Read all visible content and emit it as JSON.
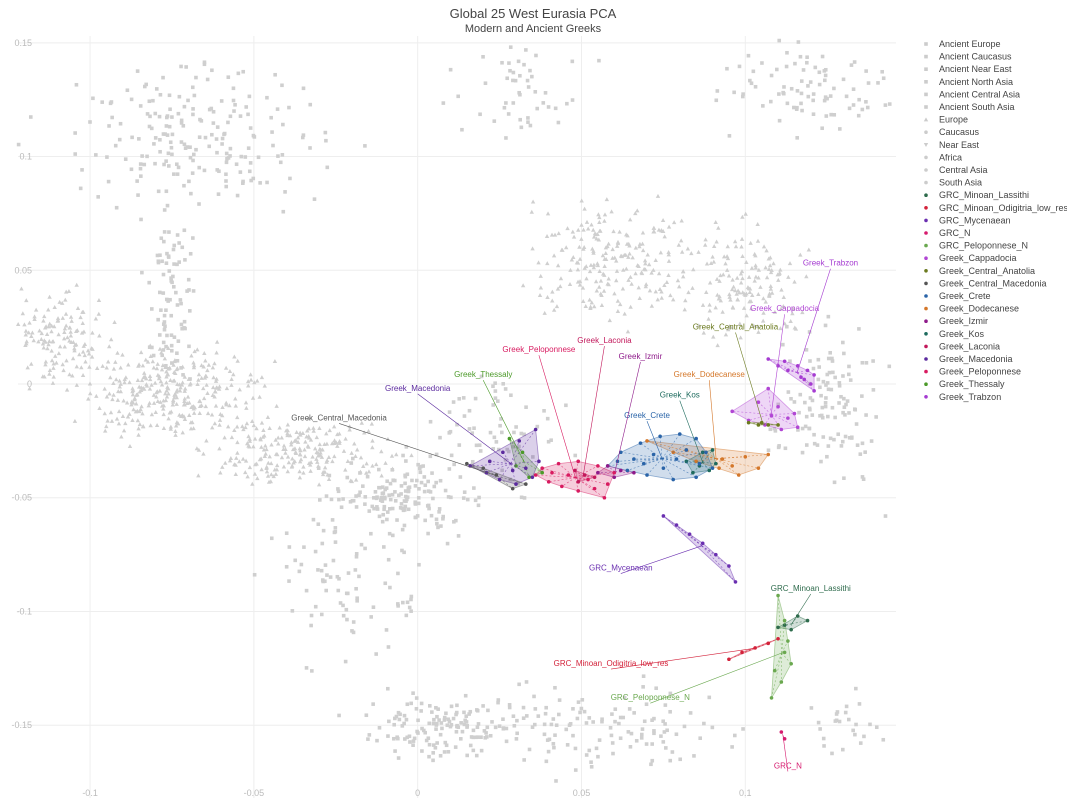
{
  "chart_data": {
    "type": "scatter",
    "title": "Global 25 West Eurasia PCA",
    "subtitle": "Modern and Ancient Greeks",
    "xlabel": "",
    "ylabel": "",
    "xlim": [
      -0.122,
      0.146
    ],
    "ylim": [
      -0.182,
      0.153
    ],
    "x_ticks": [
      -0.1,
      -0.05,
      0,
      0.05,
      0.1
    ],
    "x_tick_labels": [
      "-0.1",
      "-0.05",
      "0",
      "0.05",
      "0.1"
    ],
    "y_ticks": [
      0.15,
      0.1,
      0.05,
      0,
      -0.05,
      -0.1,
      -0.15
    ],
    "y_tick_labels": [
      "0.15",
      "0.1",
      "0.05",
      "0",
      "-0.05",
      "-0.1",
      "-0.15"
    ],
    "grid": true,
    "legend_position": "right",
    "background_points": {
      "color": "#cfcfcf",
      "note_regions": [
        {
          "name": "Europe",
          "cx": -0.065,
          "cy": -0.005,
          "n": 700
        },
        {
          "name": "Near East",
          "cx": 0.06,
          "cy": 0.05,
          "n": 260
        },
        {
          "name": "Caucasus",
          "cx": 0.1,
          "cy": 0.05,
          "n": 160
        },
        {
          "name": "Central Asia",
          "cx": -0.07,
          "cy": 0.11,
          "n": 240
        },
        {
          "name": "South Asia",
          "cx": 0.01,
          "cy": -0.15,
          "n": 220
        }
      ]
    },
    "legend": [
      {
        "name": "Ancient Europe",
        "color": "#cccccc",
        "marker": "square"
      },
      {
        "name": "Ancient Caucasus",
        "color": "#cccccc",
        "marker": "square"
      },
      {
        "name": "Ancient Near East",
        "color": "#cccccc",
        "marker": "square"
      },
      {
        "name": "Ancient North Asia",
        "color": "#cccccc",
        "marker": "square"
      },
      {
        "name": "Ancient Central Asia",
        "color": "#cccccc",
        "marker": "square"
      },
      {
        "name": "Ancient South Asia",
        "color": "#cccccc",
        "marker": "square"
      },
      {
        "name": "Europe",
        "color": "#cccccc",
        "marker": "triangle"
      },
      {
        "name": "Caucasus",
        "color": "#cccccc",
        "marker": "circle"
      },
      {
        "name": "Near East",
        "color": "#cccccc",
        "marker": "triangle-down"
      },
      {
        "name": "Africa",
        "color": "#cccccc",
        "marker": "circle"
      },
      {
        "name": "Central Asia",
        "color": "#cccccc",
        "marker": "circle"
      },
      {
        "name": "South Asia",
        "color": "#cccccc",
        "marker": "circle"
      },
      {
        "name": "GRC_Minoan_Lassithi",
        "color": "#2e6b4c",
        "marker": "circle"
      },
      {
        "name": "GRC_Minoan_Odigitria_low_res",
        "color": "#d3223a",
        "marker": "circle"
      },
      {
        "name": "GRC_Mycenaean",
        "color": "#6a2fb0",
        "marker": "circle"
      },
      {
        "name": "GRC_N",
        "color": "#d61b6e",
        "marker": "circle"
      },
      {
        "name": "GRC_Peloponnese_N",
        "color": "#6aa84f",
        "marker": "circle"
      },
      {
        "name": "Greek_Cappadocia",
        "color": "#b146d4",
        "marker": "circle"
      },
      {
        "name": "Greek_Central_Anatolia",
        "color": "#6b7a1f",
        "marker": "circle"
      },
      {
        "name": "Greek_Central_Macedonia",
        "color": "#555555",
        "marker": "circle"
      },
      {
        "name": "Greek_Crete",
        "color": "#2a64a8",
        "marker": "circle"
      },
      {
        "name": "Greek_Dodecanese",
        "color": "#d4772a",
        "marker": "circle"
      },
      {
        "name": "Greek_Izmir",
        "color": "#8e1a8a",
        "marker": "circle"
      },
      {
        "name": "Greek_Kos",
        "color": "#1e6b5e",
        "marker": "circle"
      },
      {
        "name": "Greek_Laconia",
        "color": "#c2185b",
        "marker": "circle"
      },
      {
        "name": "Greek_Macedonia",
        "color": "#5b2a9e",
        "marker": "circle"
      },
      {
        "name": "Greek_Peloponnese",
        "color": "#d81b60",
        "marker": "circle"
      },
      {
        "name": "Greek_Thessaly",
        "color": "#4c9a2a",
        "marker": "circle"
      },
      {
        "name": "Greek_Trabzon",
        "color": "#a53bd1",
        "marker": "circle"
      }
    ],
    "series": [
      {
        "name": "Greek_Trabzon",
        "color": "#a53bd1",
        "points": [
          [
            0.107,
            0.011
          ],
          [
            0.112,
            0.01
          ],
          [
            0.116,
            0.008
          ],
          [
            0.119,
            0.006
          ],
          [
            0.121,
            0.004
          ],
          [
            0.12,
            0.0
          ],
          [
            0.117,
            0.003
          ],
          [
            0.113,
            0.006
          ],
          [
            0.11,
            0.008
          ],
          [
            0.121,
            -0.003
          ],
          [
            0.118,
            0.002
          ]
        ],
        "label": "Greek_Trabzon",
        "label_pos": [
          0.126,
          0.052
        ]
      },
      {
        "name": "Greek_Cappadocia",
        "color": "#b146d4",
        "points": [
          [
            0.096,
            -0.012
          ],
          [
            0.101,
            -0.016
          ],
          [
            0.106,
            -0.018
          ],
          [
            0.111,
            -0.02
          ],
          [
            0.116,
            -0.019
          ],
          [
            0.115,
            -0.013
          ],
          [
            0.11,
            -0.01
          ],
          [
            0.107,
            -0.002
          ],
          [
            0.104,
            -0.008
          ],
          [
            0.108,
            -0.014
          ],
          [
            0.113,
            -0.015
          ]
        ],
        "label": "Greek_Cappadocia",
        "label_pos": [
          0.112,
          0.032
        ]
      },
      {
        "name": "Greek_Central_Anatolia",
        "color": "#6b7a1f",
        "points": [
          [
            0.101,
            -0.017
          ],
          [
            0.104,
            -0.018
          ],
          [
            0.107,
            -0.018
          ],
          [
            0.11,
            -0.018
          ],
          [
            0.105,
            -0.017
          ]
        ],
        "label": "Greek_Central_Anatolia",
        "label_pos": [
          0.097,
          0.024
        ]
      },
      {
        "name": "Greek_Dodecanese",
        "color": "#d4772a",
        "points": [
          [
            0.07,
            -0.025
          ],
          [
            0.078,
            -0.03
          ],
          [
            0.085,
            -0.034
          ],
          [
            0.092,
            -0.037
          ],
          [
            0.098,
            -0.04
          ],
          [
            0.104,
            -0.037
          ],
          [
            0.107,
            -0.031
          ],
          [
            0.1,
            -0.032
          ],
          [
            0.093,
            -0.033
          ],
          [
            0.088,
            -0.03
          ],
          [
            0.082,
            -0.029
          ],
          [
            0.096,
            -0.036
          ]
        ],
        "label": "Greek_Dodecanese",
        "label_pos": [
          0.089,
          0.003
        ]
      },
      {
        "name": "Greek_Kos",
        "color": "#1e6b5e",
        "points": [
          [
            0.082,
            -0.034
          ],
          [
            0.086,
            -0.036
          ],
          [
            0.089,
            -0.038
          ],
          [
            0.087,
            -0.03
          ],
          [
            0.09,
            -0.029
          ],
          [
            0.084,
            -0.039
          ],
          [
            0.091,
            -0.035
          ]
        ],
        "label": "Greek_Kos",
        "label_pos": [
          0.08,
          -0.006
        ]
      },
      {
        "name": "Greek_Crete",
        "color": "#2a64a8",
        "points": [
          [
            0.062,
            -0.03
          ],
          [
            0.068,
            -0.026
          ],
          [
            0.074,
            -0.023
          ],
          [
            0.08,
            -0.022
          ],
          [
            0.085,
            -0.024
          ],
          [
            0.088,
            -0.03
          ],
          [
            0.09,
            -0.037
          ],
          [
            0.085,
            -0.041
          ],
          [
            0.078,
            -0.042
          ],
          [
            0.07,
            -0.04
          ],
          [
            0.064,
            -0.038
          ],
          [
            0.058,
            -0.036
          ],
          [
            0.066,
            -0.033
          ],
          [
            0.072,
            -0.031
          ],
          [
            0.079,
            -0.033
          ],
          [
            0.075,
            -0.037
          ],
          [
            0.082,
            -0.029
          ],
          [
            0.069,
            -0.035
          ],
          [
            0.061,
            -0.034
          ],
          [
            0.086,
            -0.035
          ]
        ],
        "label": "Greek_Crete",
        "label_pos": [
          0.07,
          -0.015
        ]
      },
      {
        "name": "Greek_Izmir",
        "color": "#8e1a8a",
        "points": [
          [
            0.058,
            -0.036
          ],
          [
            0.062,
            -0.038
          ],
          [
            0.066,
            -0.039
          ],
          [
            0.055,
            -0.039
          ],
          [
            0.06,
            -0.041
          ]
        ],
        "label": "Greek_Izmir",
        "label_pos": [
          0.068,
          0.011
        ]
      },
      {
        "name": "Greek_Laconia",
        "color": "#c2185b",
        "points": [
          [
            0.048,
            -0.038
          ],
          [
            0.051,
            -0.04
          ],
          [
            0.054,
            -0.041
          ],
          [
            0.049,
            -0.043
          ]
        ],
        "label": "Greek_Laconia",
        "label_pos": [
          0.057,
          0.018
        ]
      },
      {
        "name": "Greek_Peloponnese",
        "color": "#d81b60",
        "points": [
          [
            0.036,
            -0.04
          ],
          [
            0.04,
            -0.043
          ],
          [
            0.044,
            -0.045
          ],
          [
            0.049,
            -0.047
          ],
          [
            0.054,
            -0.046
          ],
          [
            0.058,
            -0.044
          ],
          [
            0.06,
            -0.039
          ],
          [
            0.055,
            -0.036
          ],
          [
            0.049,
            -0.034
          ],
          [
            0.043,
            -0.035
          ],
          [
            0.038,
            -0.037
          ],
          [
            0.046,
            -0.04
          ],
          [
            0.052,
            -0.042
          ],
          [
            0.057,
            -0.05
          ],
          [
            0.041,
            -0.039
          ]
        ],
        "label": "Greek_Peloponnese",
        "label_pos": [
          0.037,
          0.014
        ]
      },
      {
        "name": "Greek_Thessaly",
        "color": "#4c9a2a",
        "points": [
          [
            0.028,
            -0.024
          ],
          [
            0.032,
            -0.03
          ],
          [
            0.03,
            -0.036
          ],
          [
            0.034,
            -0.041
          ],
          [
            0.038,
            -0.039
          ]
        ],
        "label": "Greek_Thessaly",
        "label_pos": [
          0.02,
          0.003
        ]
      },
      {
        "name": "Greek_Macedonia",
        "color": "#5b2a9e",
        "points": [
          [
            0.016,
            -0.036
          ],
          [
            0.021,
            -0.039
          ],
          [
            0.025,
            -0.042
          ],
          [
            0.03,
            -0.044
          ],
          [
            0.035,
            -0.041
          ],
          [
            0.037,
            -0.034
          ],
          [
            0.036,
            -0.02
          ],
          [
            0.031,
            -0.025
          ],
          [
            0.026,
            -0.03
          ],
          [
            0.022,
            -0.034
          ],
          [
            0.029,
            -0.038
          ],
          [
            0.033,
            -0.037
          ]
        ],
        "label": "Greek_Macedonia",
        "label_pos": [
          0.0,
          -0.003
        ]
      },
      {
        "name": "Greek_Central_Macedonia",
        "color": "#555555",
        "points": [
          [
            0.015,
            -0.035
          ],
          [
            0.02,
            -0.037
          ],
          [
            0.024,
            -0.04
          ],
          [
            0.029,
            -0.046
          ],
          [
            0.033,
            -0.044
          ]
        ],
        "label": "Greek_Central_Macedonia",
        "label_pos": [
          -0.024,
          -0.016
        ]
      },
      {
        "name": "GRC_Mycenaean",
        "color": "#6a2fb0",
        "points": [
          [
            0.075,
            -0.058
          ],
          [
            0.079,
            -0.062
          ],
          [
            0.083,
            -0.066
          ],
          [
            0.087,
            -0.07
          ],
          [
            0.091,
            -0.075
          ],
          [
            0.095,
            -0.08
          ],
          [
            0.097,
            -0.087
          ]
        ],
        "label": "GRC_Mycenaean",
        "label_pos": [
          0.062,
          -0.082
        ]
      },
      {
        "name": "GRC_Minoan_Lassithi",
        "color": "#2e6b4c",
        "points": [
          [
            0.11,
            -0.107
          ],
          [
            0.114,
            -0.108
          ],
          [
            0.119,
            -0.104
          ],
          [
            0.116,
            -0.102
          ],
          [
            0.112,
            -0.106
          ]
        ],
        "label": "GRC_Minoan_Lassithi",
        "label_pos": [
          0.12,
          -0.091
        ]
      },
      {
        "name": "GRC_Minoan_Odigitria_low_res",
        "color": "#d3223a",
        "points": [
          [
            0.095,
            -0.121
          ],
          [
            0.099,
            -0.118
          ],
          [
            0.103,
            -0.116
          ],
          [
            0.107,
            -0.114
          ],
          [
            0.11,
            -0.112
          ]
        ],
        "label": "GRC_Minoan_Odigitria_low_res",
        "label_pos": [
          0.059,
          -0.124
        ]
      },
      {
        "name": "GRC_Peloponnese_N",
        "color": "#6aa84f",
        "points": [
          [
            0.11,
            -0.093
          ],
          [
            0.112,
            -0.104
          ],
          [
            0.113,
            -0.113
          ],
          [
            0.114,
            -0.123
          ],
          [
            0.111,
            -0.131
          ],
          [
            0.108,
            -0.138
          ],
          [
            0.109,
            -0.126
          ],
          [
            0.112,
            -0.118
          ]
        ],
        "label": "GRC_Peloponnese_N",
        "label_pos": [
          0.071,
          -0.139
        ]
      },
      {
        "name": "GRC_N",
        "color": "#d61b6e",
        "points": [
          [
            0.111,
            -0.153
          ],
          [
            0.112,
            -0.156
          ]
        ],
        "label": "GRC_N",
        "label_pos": [
          0.113,
          -0.169
        ]
      }
    ]
  }
}
